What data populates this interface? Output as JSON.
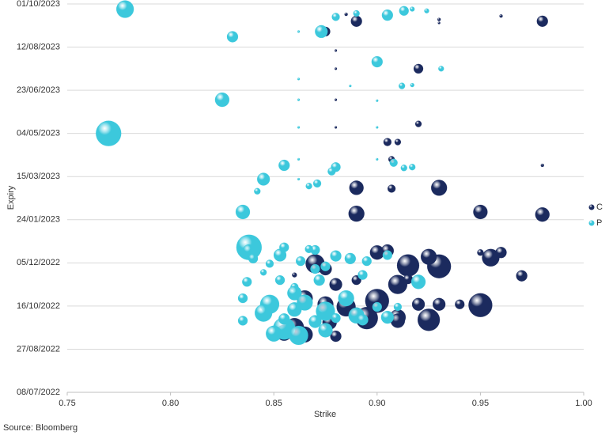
{
  "chart_data": {
    "type": "bubble",
    "x_label": "Strike",
    "y_label": "Expiry",
    "source": "Source: Bloomberg",
    "xlim": [
      0.75,
      1.0
    ],
    "xticks": [
      0.75,
      {
        "value": 0.8,
        "label": "0.80"
      },
      0.85,
      {
        "value": 0.9,
        "label": "0.90"
      },
      0.95,
      {
        "value": 1.0,
        "label": "1.00"
      }
    ],
    "ylim": [
      "2022-07-08",
      "2023-10-01"
    ],
    "yticks": [
      {
        "value": "2022-07-08",
        "label": "08/07/2022"
      },
      {
        "value": "2022-08-27",
        "label": "27/08/2022"
      },
      {
        "value": "2022-10-16",
        "label": "16/10/2022"
      },
      {
        "value": "2022-12-05",
        "label": "05/12/2022"
      },
      {
        "value": "2023-01-24",
        "label": "24/01/2023"
      },
      {
        "value": "2023-03-15",
        "label": "15/03/2023"
      },
      {
        "value": "2023-05-04",
        "label": "04/05/2023"
      },
      {
        "value": "2023-06-23",
        "label": "23/06/2023"
      },
      {
        "value": "2023-08-12",
        "label": "12/08/2023"
      },
      {
        "value": "2023-10-01",
        "label": "01/10/2023"
      }
    ],
    "grid": true,
    "legend": "right",
    "series": [
      {
        "name": "C",
        "color": "#1b2a5e",
        "x": [
          0.89,
          0.98,
          0.96,
          0.93,
          0.93,
          0.885,
          0.875,
          0.88,
          0.88,
          0.92,
          0.88,
          0.88,
          0.92,
          0.905,
          0.91,
          0.907,
          0.98,
          0.89,
          0.907,
          0.93,
          0.89,
          0.95,
          0.98,
          0.955,
          0.96,
          0.95,
          0.97,
          0.95,
          0.925,
          0.93,
          0.915,
          0.925,
          0.91,
          0.92,
          0.93,
          0.91,
          0.895,
          0.9,
          0.885,
          0.87,
          0.865,
          0.875,
          0.86,
          0.865,
          0.88,
          0.855,
          0.9,
          0.88,
          0.875,
          0.905,
          0.89,
          0.86,
          0.915,
          0.94,
          0.91,
          0.89,
          0.877
        ],
        "y": [
          "2023-09-11",
          "2023-09-11",
          "2023-09-17",
          "2023-09-13",
          "2023-09-09",
          "2023-09-19",
          "2023-08-30",
          "2023-08-08",
          "2023-07-18",
          "2023-07-18",
          "2023-06-12",
          "2023-05-11",
          "2023-05-15",
          "2023-04-24",
          "2023-04-24",
          "2023-04-04",
          "2023-03-28",
          "2023-03-02",
          "2023-03-01",
          "2023-03-02",
          "2023-01-31",
          "2023-02-02",
          "2023-01-30",
          "2022-12-11",
          "2022-12-17",
          "2022-12-17",
          "2022-11-20",
          "2022-10-17",
          "2022-09-30",
          "2022-12-01",
          "2022-12-02",
          "2022-12-12",
          "2022-11-10",
          "2022-10-18",
          "2022-10-18",
          "2022-10-03",
          "2022-10-02",
          "2022-10-22",
          "2022-10-15",
          "2022-12-04",
          "2022-10-25",
          "2022-10-18",
          "2022-09-21",
          "2022-09-13",
          "2022-09-11",
          "2022-09-15",
          "2022-12-17",
          "2022-11-10",
          "2022-11-28",
          "2022-12-19",
          "2022-11-15",
          "2022-11-21",
          "2022-11-16",
          "2022-10-18",
          "2022-09-29",
          "2022-10-07",
          "2022-09-27"
        ],
        "sizes": [
          7,
          7,
          2,
          2,
          1.5,
          2,
          6,
          1.5,
          1.5,
          6,
          1.5,
          1.5,
          4,
          5,
          4,
          4,
          2,
          9,
          5,
          10,
          10,
          9,
          9,
          11,
          7,
          4,
          7,
          15,
          14,
          15,
          14,
          10,
          12,
          8,
          8,
          10,
          14,
          15,
          12,
          12,
          10,
          10,
          12,
          10,
          7,
          10,
          9,
          8,
          8,
          8,
          6,
          3,
          6,
          6,
          9,
          8,
          9
        ]
      },
      {
        "name": "P",
        "color": "#3cc8dc",
        "x": [
          0.778,
          0.83,
          0.905,
          0.913,
          0.924,
          0.917,
          0.89,
          0.88,
          0.873,
          0.862,
          0.9,
          0.931,
          0.862,
          0.912,
          0.917,
          0.887,
          0.825,
          0.862,
          0.9,
          0.77,
          0.862,
          0.9,
          0.855,
          0.88,
          0.878,
          0.862,
          0.9,
          0.908,
          0.913,
          0.917,
          0.845,
          0.871,
          0.867,
          0.842,
          0.835,
          0.862,
          0.838,
          0.838,
          0.84,
          0.855,
          0.853,
          0.848,
          0.863,
          0.87,
          0.88,
          0.887,
          0.875,
          0.895,
          0.905,
          0.867,
          0.845,
          0.837,
          0.853,
          0.86,
          0.872,
          0.87,
          0.893,
          0.92,
          0.86,
          0.835,
          0.848,
          0.865,
          0.885,
          0.835,
          0.845,
          0.86,
          0.875,
          0.89,
          0.905,
          0.855,
          0.85,
          0.862,
          0.875,
          0.893,
          0.9,
          0.91,
          0.88,
          0.87,
          0.855
        ],
        "y": [
          "2023-09-25",
          "2023-08-24",
          "2023-09-18",
          "2023-09-23",
          "2023-09-23",
          "2023-09-25",
          "2023-09-20",
          "2023-09-16",
          "2023-08-30",
          "2023-08-30",
          "2023-07-26",
          "2023-07-18",
          "2023-07-06",
          "2023-06-28",
          "2023-06-29",
          "2023-06-28",
          "2023-06-12",
          "2023-06-12",
          "2023-06-11",
          "2023-05-04",
          "2023-05-11",
          "2023-05-11",
          "2023-03-28",
          "2023-03-26",
          "2023-03-21",
          "2023-04-04",
          "2023-04-04",
          "2023-03-31",
          "2023-03-25",
          "2023-03-26",
          "2023-03-12",
          "2023-03-07",
          "2023-03-04",
          "2023-02-26",
          "2023-02-02",
          "2023-03-12",
          "2022-12-23",
          "2022-12-19",
          "2022-12-10",
          "2022-12-23",
          "2022-12-14",
          "2022-12-04",
          "2022-12-07",
          "2022-12-20",
          "2022-12-13",
          "2022-12-10",
          "2022-12-01",
          "2022-12-07",
          "2022-12-14",
          "2022-12-21",
          "2022-11-24",
          "2022-11-13",
          "2022-11-15",
          "2022-11-07",
          "2022-11-15",
          "2022-11-28",
          "2022-11-21",
          "2022-11-13",
          "2022-10-31",
          "2022-10-25",
          "2022-10-18",
          "2022-10-20",
          "2022-10-25",
          "2022-09-29",
          "2022-10-08",
          "2022-10-12",
          "2022-10-10",
          "2022-10-05",
          "2022-10-03",
          "2022-09-20",
          "2022-09-14",
          "2022-09-12",
          "2022-09-18",
          "2022-09-30",
          "2022-10-15",
          "2022-10-15",
          "2022-10-02",
          "2022-09-28",
          "2022-10-01"
        ],
        "sizes": [
          11,
          7,
          7,
          6,
          3,
          3,
          4,
          5,
          8,
          1.5,
          7,
          3.5,
          1.5,
          4,
          2.5,
          1.5,
          9,
          1.5,
          1.5,
          16,
          1.5,
          1.5,
          7,
          6,
          5,
          1.5,
          1.5,
          5,
          4,
          4,
          8,
          5,
          4,
          4,
          9,
          1.5,
          16,
          8,
          6,
          6,
          8,
          5,
          6,
          6,
          7,
          7,
          6,
          6,
          6,
          5,
          4,
          6,
          6,
          5,
          7,
          6,
          6,
          9,
          9,
          6,
          12,
          10,
          10,
          6,
          11,
          9,
          12,
          10,
          8,
          14,
          10,
          12,
          9,
          7,
          6,
          5,
          6,
          8,
          7
        ]
      }
    ]
  }
}
